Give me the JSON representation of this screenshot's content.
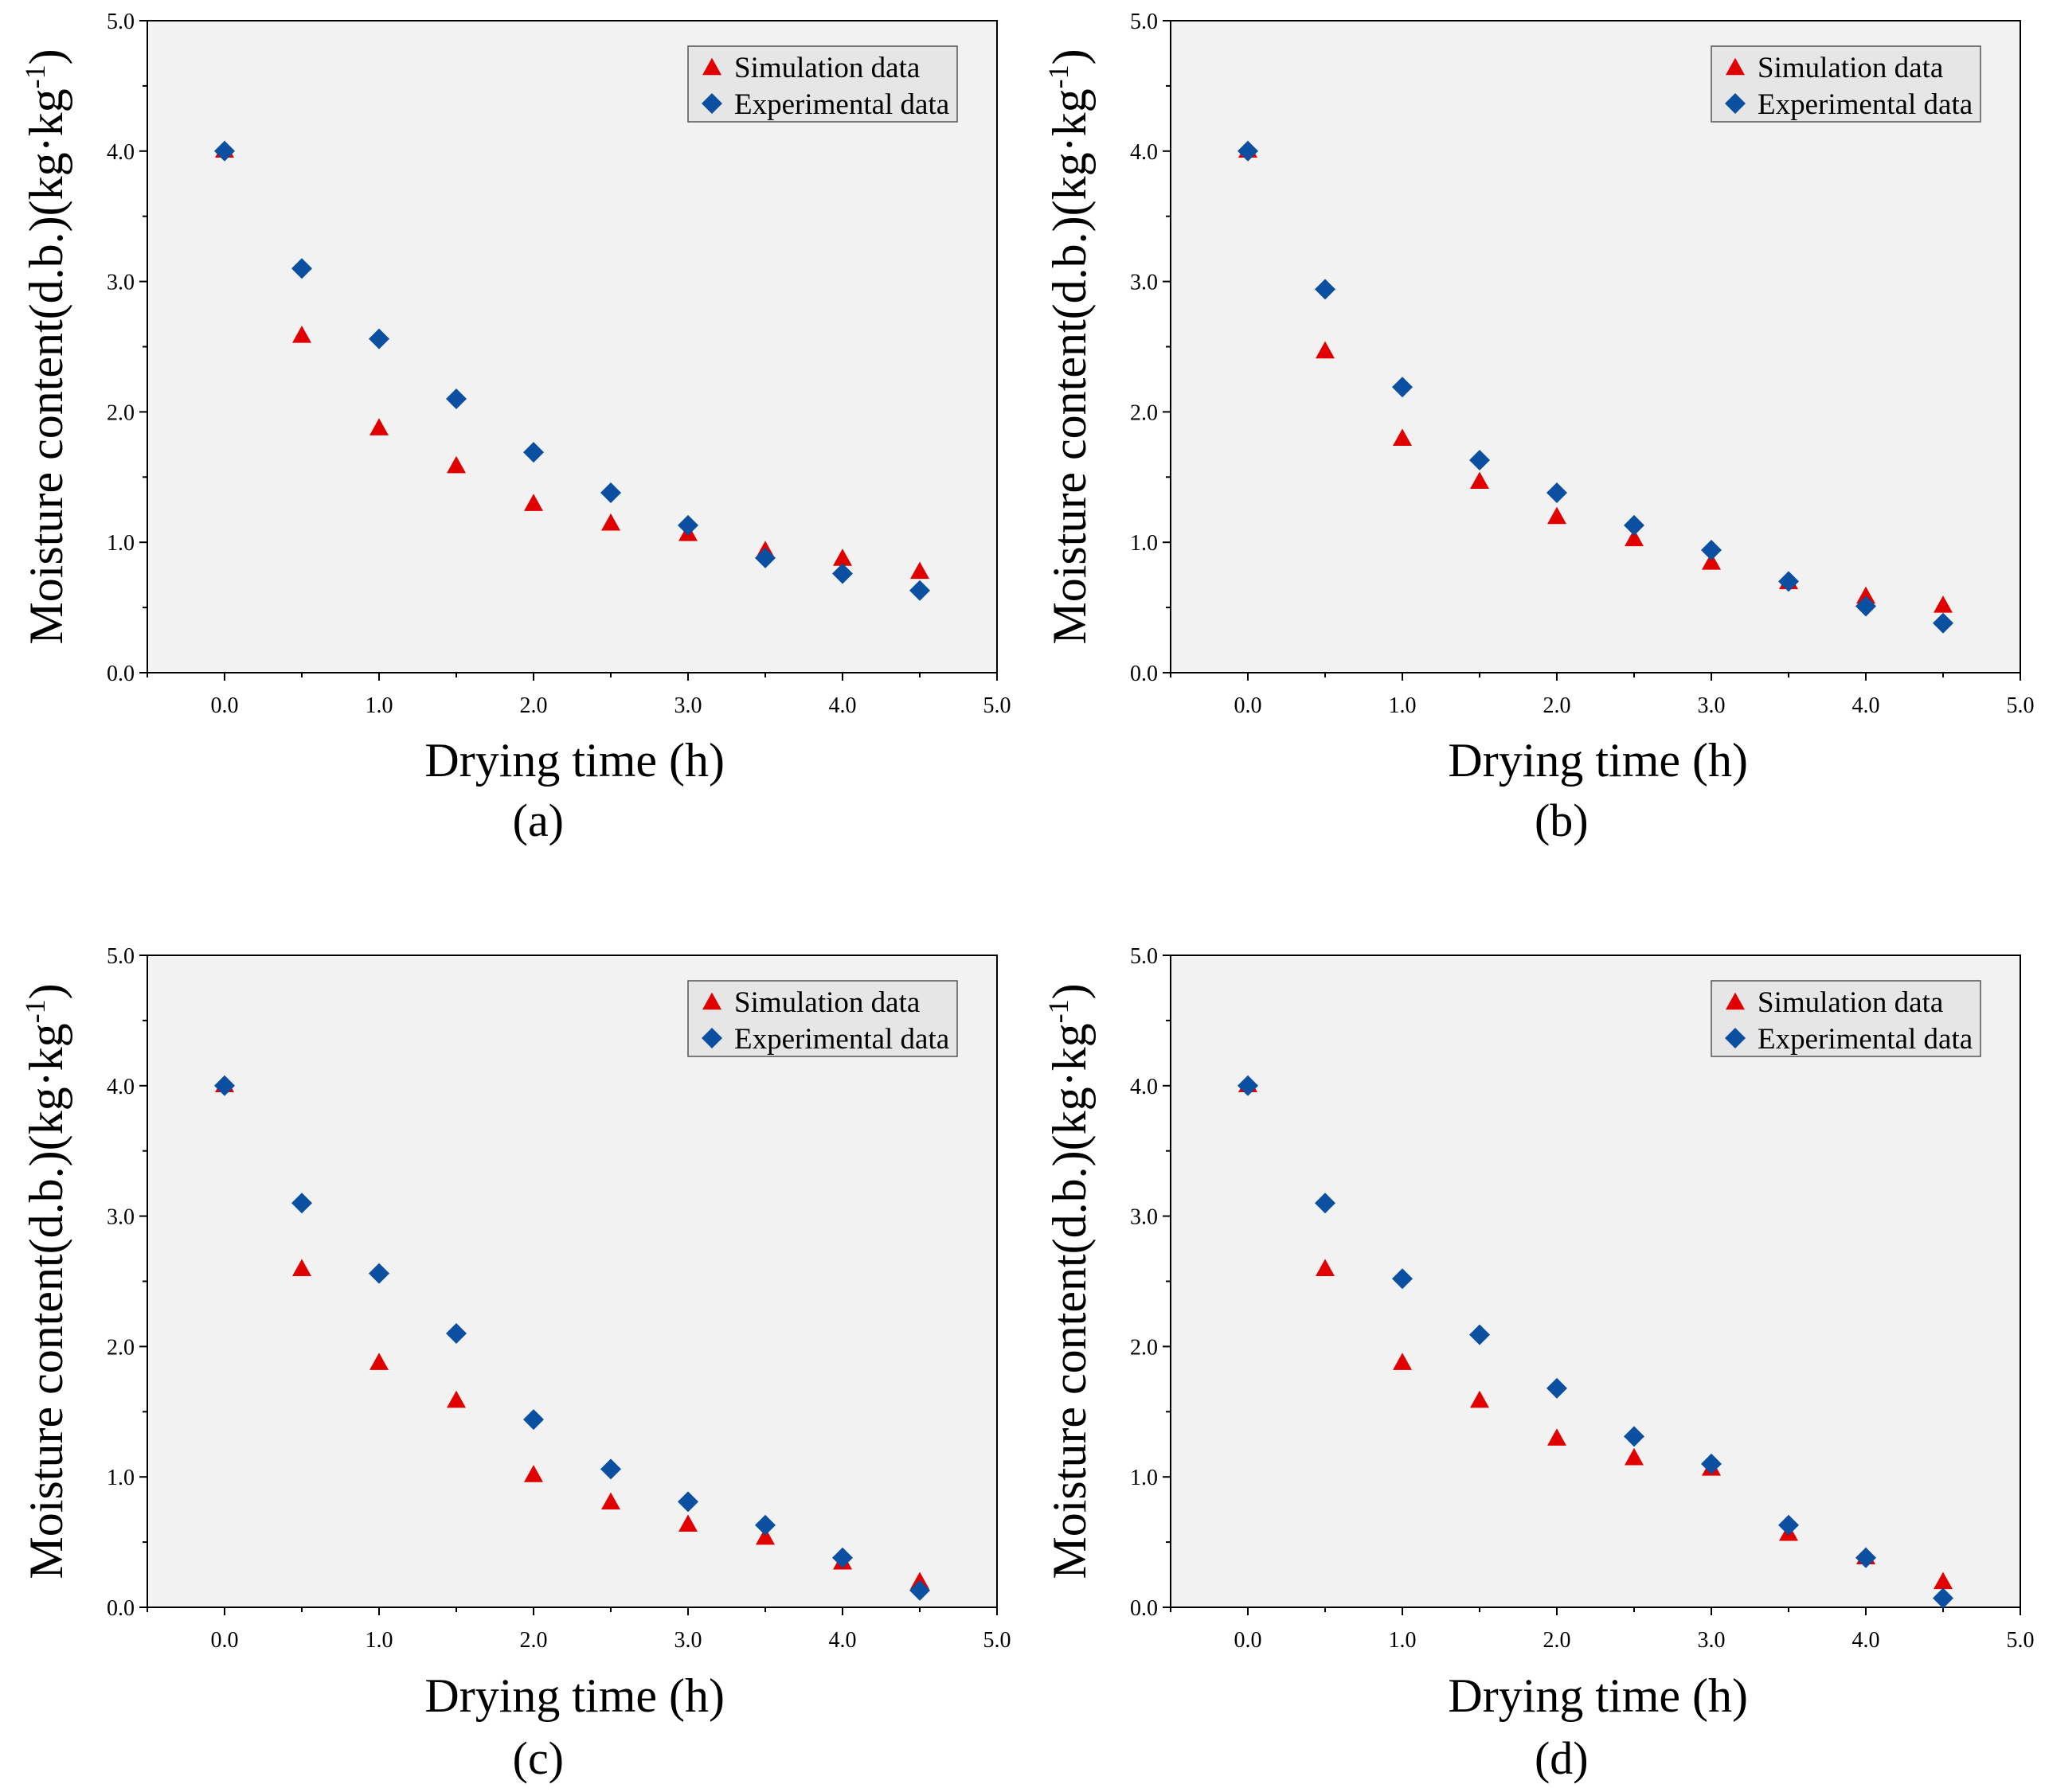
{
  "colors": {
    "simulation": "#e00000",
    "experimental": "#0a4fa0",
    "plot_background": "#f2f2f2",
    "legend_background": "#e6e6e6"
  },
  "chart_data": [
    {
      "type": "scatter",
      "panel_label": "(a)",
      "xlabel": "Drying time (h)",
      "ylabel": "Moisture content(d.b.)(kg·kg-1)",
      "ylabel_main": "Moisture content(d.b.)(kg·kg",
      "ylabel_sup": "-1",
      "ylabel_end": ")",
      "xlim": [
        -0.5,
        5.0
      ],
      "ylim": [
        0.0,
        5.0
      ],
      "xticks": [
        "0.0",
        "1.0",
        "2.0",
        "3.0",
        "4.0",
        "5.0"
      ],
      "yticks": [
        "0.0",
        "1.0",
        "2.0",
        "3.0",
        "4.0",
        "5.0"
      ],
      "legend": {
        "position": "top-right",
        "entries": [
          "Simulation data",
          "Experimental data"
        ]
      },
      "x": [
        0,
        0.5,
        1.0,
        1.5,
        2.0,
        2.5,
        3.0,
        3.5,
        4.0,
        4.5
      ],
      "series": [
        {
          "name": "Simulation data",
          "marker": "triangle",
          "values": [
            4.0,
            2.58,
            1.87,
            1.58,
            1.29,
            1.14,
            1.06,
            0.93,
            0.87,
            0.77
          ]
        },
        {
          "name": "Experimental data",
          "marker": "diamond",
          "values": [
            4.0,
            3.1,
            2.56,
            2.1,
            1.69,
            1.38,
            1.13,
            0.88,
            0.76,
            0.63
          ]
        }
      ]
    },
    {
      "type": "scatter",
      "panel_label": "(b)",
      "xlabel": "Drying time (h)",
      "ylabel": "Moisture content(d.b.)(kg·kg-1)",
      "ylabel_main": "Moisture content(d.b.)(kg·kg",
      "ylabel_sup": "-1",
      "ylabel_end": ")",
      "xlim": [
        -0.5,
        5.0
      ],
      "ylim": [
        0.0,
        5.0
      ],
      "xticks": [
        "0.0",
        "1.0",
        "2.0",
        "3.0",
        "4.0",
        "5.0"
      ],
      "yticks": [
        "0.0",
        "1.0",
        "2.0",
        "3.0",
        "4.0",
        "5.0"
      ],
      "legend": {
        "position": "top-right",
        "entries": [
          "Simulation data",
          "Experimental data"
        ]
      },
      "x": [
        0,
        0.5,
        1.0,
        1.5,
        2.0,
        2.5,
        3.0,
        3.5,
        4.0,
        4.5
      ],
      "series": [
        {
          "name": "Simulation data",
          "marker": "triangle",
          "values": [
            4.0,
            2.46,
            1.79,
            1.46,
            1.19,
            1.02,
            0.84,
            0.69,
            0.58,
            0.51
          ]
        },
        {
          "name": "Experimental data",
          "marker": "diamond",
          "values": [
            4.0,
            2.94,
            2.19,
            1.63,
            1.38,
            1.13,
            0.94,
            0.7,
            0.51,
            0.38
          ]
        }
      ]
    },
    {
      "type": "scatter",
      "panel_label": "(c)",
      "xlabel": "Drying time (h)",
      "ylabel": "Moisture content(d.b.)(kg·kg-1)",
      "ylabel_main": "Moisture content(d.b.)(kg·kg",
      "ylabel_sup": "-1",
      "ylabel_end": ")",
      "xlim": [
        -0.5,
        5.0
      ],
      "ylim": [
        0.0,
        5.0
      ],
      "xticks": [
        "0.0",
        "1.0",
        "2.0",
        "3.0",
        "4.0",
        "5.0"
      ],
      "yticks": [
        "0.0",
        "1.0",
        "2.0",
        "3.0",
        "4.0",
        "5.0"
      ],
      "legend": {
        "position": "top-right",
        "entries": [
          "Simulation data",
          "Experimental data"
        ]
      },
      "x": [
        0,
        0.5,
        1.0,
        1.5,
        2.0,
        2.5,
        3.0,
        3.5,
        4.0,
        4.5
      ],
      "series": [
        {
          "name": "Simulation data",
          "marker": "triangle",
          "values": [
            4.0,
            2.59,
            1.87,
            1.58,
            1.01,
            0.8,
            0.63,
            0.53,
            0.34,
            0.19
          ]
        },
        {
          "name": "Experimental data",
          "marker": "diamond",
          "values": [
            4.0,
            3.1,
            2.56,
            2.1,
            1.44,
            1.06,
            0.81,
            0.63,
            0.38,
            0.13
          ]
        }
      ]
    },
    {
      "type": "scatter",
      "panel_label": "(d)",
      "xlabel": "Drying time (h)",
      "ylabel": "Moisture content(d.b.)(kg·kg-1)",
      "ylabel_main": "Moisture content(d.b.)(kg·kg",
      "ylabel_sup": "-1",
      "ylabel_end": ")",
      "xlim": [
        -0.5,
        5.0
      ],
      "ylim": [
        0.0,
        5.0
      ],
      "xticks": [
        "0.0",
        "1.0",
        "2.0",
        "3.0",
        "4.0",
        "5.0"
      ],
      "yticks": [
        "0.0",
        "1.0",
        "2.0",
        "3.0",
        "4.0",
        "5.0"
      ],
      "legend": {
        "position": "top-right",
        "entries": [
          "Simulation data",
          "Experimental data"
        ]
      },
      "x": [
        0,
        0.5,
        1.0,
        1.5,
        2.0,
        2.5,
        3.0,
        3.5,
        4.0,
        4.5
      ],
      "series": [
        {
          "name": "Simulation data",
          "marker": "triangle",
          "values": [
            4.0,
            2.59,
            1.87,
            1.58,
            1.29,
            1.14,
            1.06,
            0.56,
            0.38,
            0.19
          ]
        },
        {
          "name": "Experimental data",
          "marker": "diamond",
          "values": [
            4.0,
            3.1,
            2.52,
            2.09,
            1.68,
            1.31,
            1.1,
            0.63,
            0.38,
            0.07
          ]
        }
      ]
    }
  ]
}
